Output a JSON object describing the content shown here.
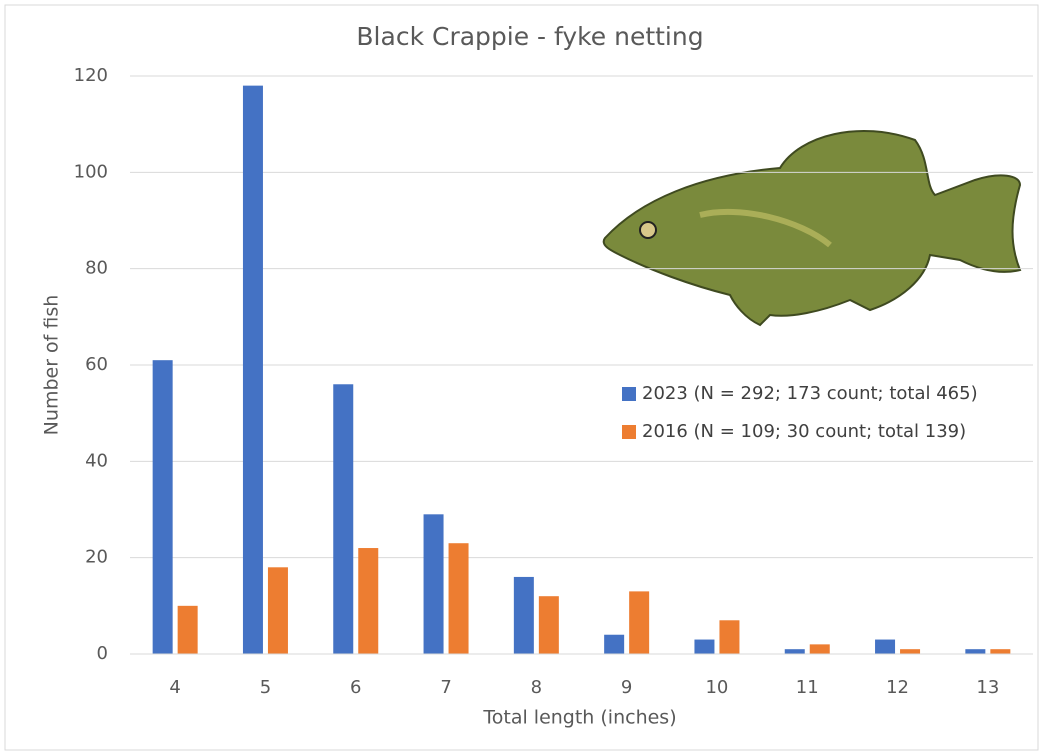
{
  "chart_data": {
    "type": "bar",
    "title": "Black Crappie - fyke netting",
    "x_label": "Total length (inches)",
    "y_label": "Number of fish",
    "categories": [
      "4",
      "5",
      "6",
      "7",
      "8",
      "9",
      "10",
      "11",
      "12",
      "13"
    ],
    "series": [
      {
        "name": "2023 (N = 292; 173 count; total 465)",
        "color": "#4472c4",
        "values": [
          61,
          118,
          56,
          29,
          16,
          4,
          3,
          1,
          3,
          1
        ]
      },
      {
        "name": "2016 (N = 109; 30 count; total 139)",
        "color": "#ed7d31",
        "values": [
          10,
          18,
          22,
          23,
          12,
          13,
          7,
          2,
          1,
          1
        ]
      }
    ],
    "ylim": [
      0,
      120
    ],
    "yticks": [
      0,
      20,
      40,
      60,
      80,
      100,
      120
    ],
    "grid": true
  }
}
